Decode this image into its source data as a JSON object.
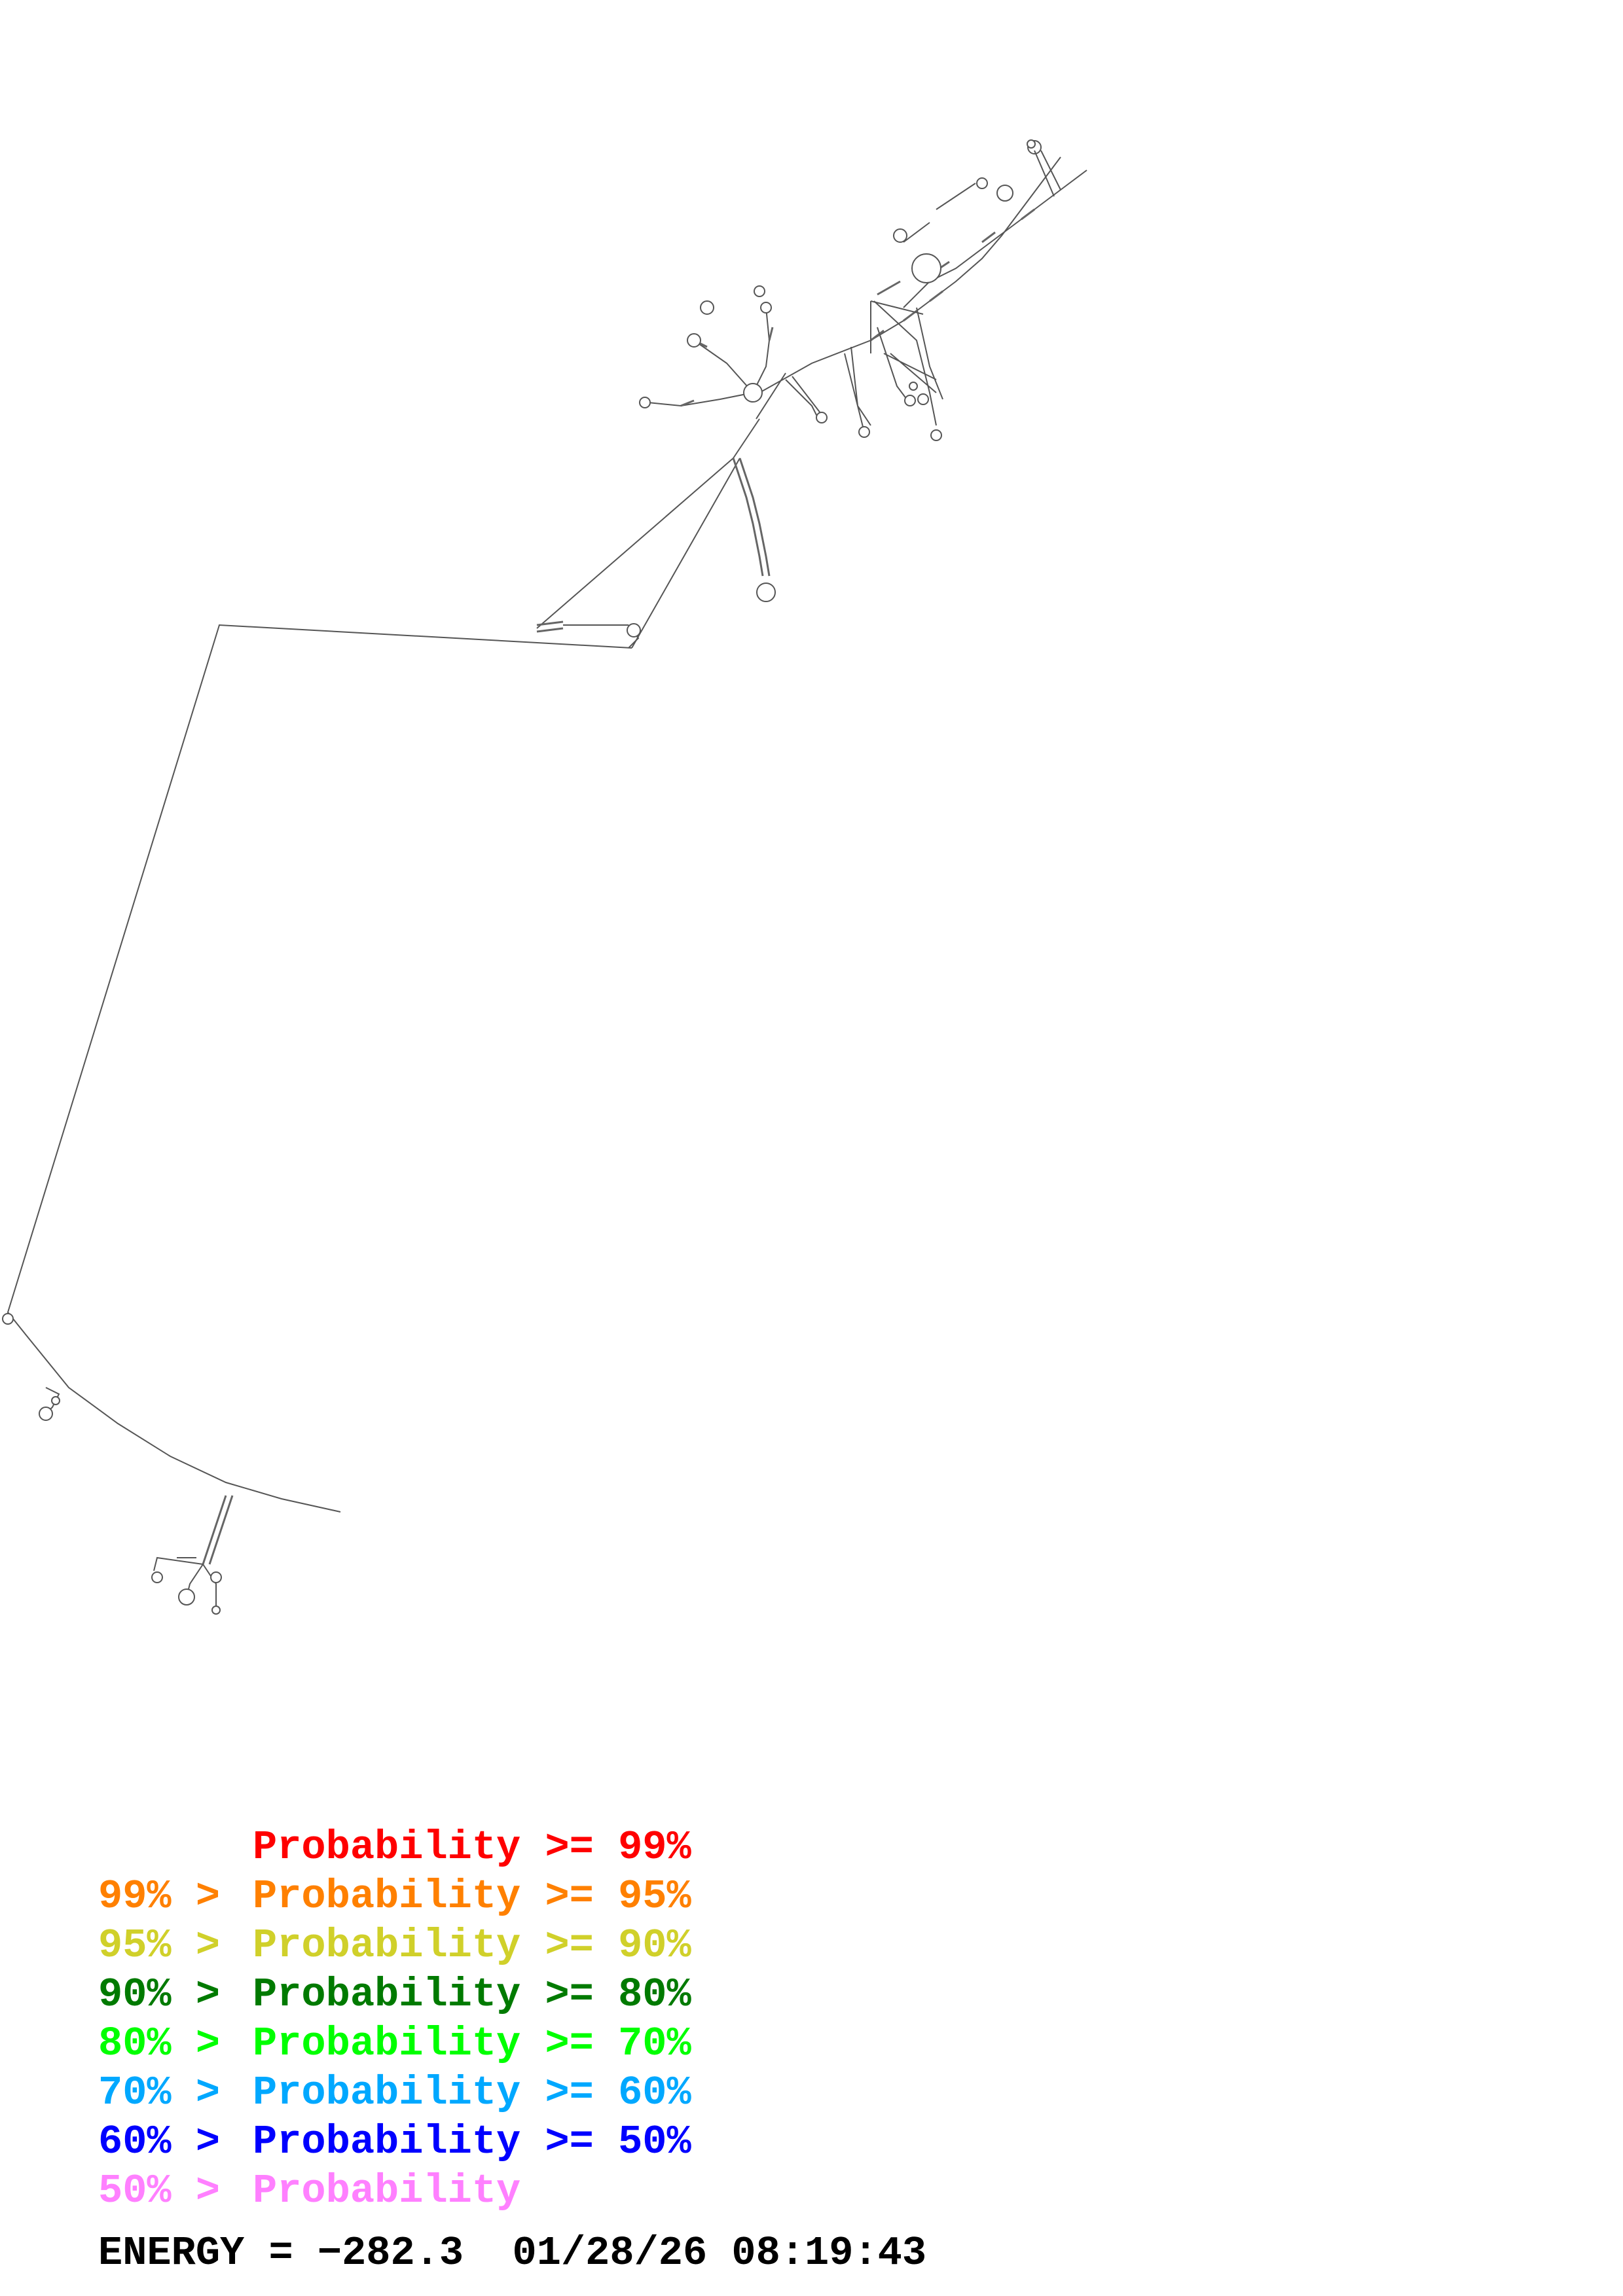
{
  "legend": [
    {
      "prefix": "",
      "label": "Probability >= 99%",
      "color": "#ff0000"
    },
    {
      "prefix": "99% >",
      "label": "Probability >= 95%",
      "color": "#ff8000"
    },
    {
      "prefix": "95% >",
      "label": "Probability >= 90%",
      "color": "#d0d02a"
    },
    {
      "prefix": "90% >",
      "label": "Probability >= 80%",
      "color": "#007a00"
    },
    {
      "prefix": "80% >",
      "label": "Probability >= 70%",
      "color": "#00ff00"
    },
    {
      "prefix": "70% >",
      "label": "Probability >= 60%",
      "color": "#00a8ff"
    },
    {
      "prefix": "60% >",
      "label": "Probability >= 50%",
      "color": "#0000ff"
    },
    {
      "prefix": "50% >",
      "label": "Probability",
      "color": "#ff80ff"
    }
  ],
  "footer": {
    "energy_label": "ENERGY =",
    "energy_value": "−282.3",
    "date": "01/28/26",
    "time": "08:19:43"
  },
  "diagram": {
    "stroke_color": "#555555",
    "background": "#ffffff"
  }
}
